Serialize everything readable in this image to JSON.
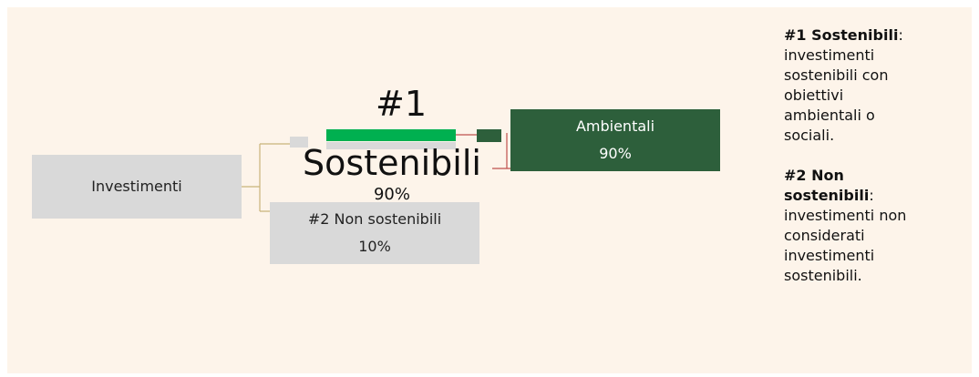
{
  "nodes": [
    {
      "label": "Investimenti"
    },
    {
      "label": "#1",
      "sublabel": "Sostenibili",
      "value": "90%"
    },
    {
      "label": "Ambientali",
      "value": "90%"
    },
    {
      "label": "#2 Non sostenibili",
      "value": "10%"
    }
  ],
  "notes": [
    {
      "term": "#1 Sostenibili",
      "text": ": investimenti sostenibili con obiettivi ambientali o sociali."
    },
    {
      "term": "#2 Non sostenibili",
      "text": ": investimenti non considerati investimenti sostenibili."
    }
  ]
}
